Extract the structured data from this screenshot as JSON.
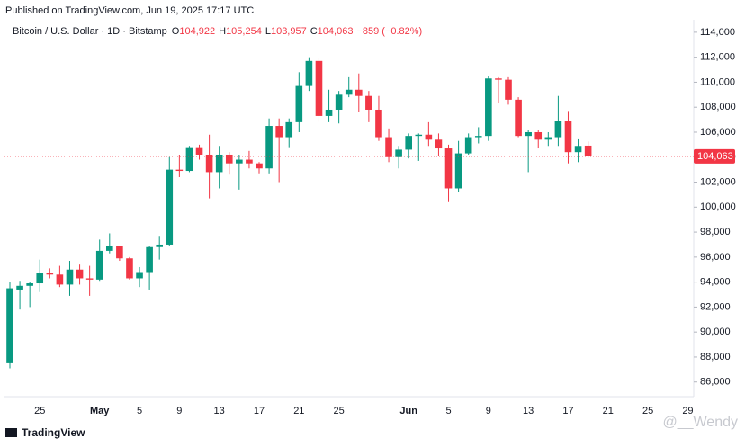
{
  "published": "Published on TradingView.com, Jun 19, 2025 17:17 UTC",
  "legend": {
    "symbol": "Bitcoin / U.S. Dollar · 1D · Bitstamp",
    "fields": [
      {
        "key": "O",
        "value": "104,922"
      },
      {
        "key": "H",
        "value": "105,254"
      },
      {
        "key": "L",
        "value": "103,957"
      },
      {
        "key": "C",
        "value": "104,063"
      }
    ],
    "change": "−859 (−0.82%)"
  },
  "brand": "TradingView",
  "watermark": "@__Wendy",
  "chart_data": {
    "type": "candlestick",
    "categories": [
      null,
      null,
      null,
      "25",
      null,
      null,
      null,
      null,
      null,
      "May",
      null,
      null,
      null,
      "5",
      null,
      null,
      null,
      "9",
      null,
      null,
      null,
      "13",
      null,
      null,
      null,
      "17",
      null,
      null,
      null,
      "21",
      null,
      null,
      null,
      "25",
      null,
      null,
      null,
      null,
      null,
      null,
      "Jun",
      null,
      null,
      null,
      "5",
      null,
      null,
      null,
      "9",
      null,
      null,
      null,
      "13",
      null,
      null,
      null,
      "17",
      null,
      null,
      null,
      "21",
      null,
      null,
      null,
      "25",
      null,
      null,
      null,
      "29"
    ],
    "open": [
      87500,
      93400,
      93700,
      93900,
      94700,
      94600,
      93800,
      95000,
      94300,
      94200,
      96500,
      96900,
      95900,
      94300,
      94800,
      96800,
      97000,
      103000,
      102900,
      104800,
      104200,
      102800,
      104200,
      103500,
      103800,
      103500,
      103100,
      106500,
      105600,
      106800,
      109700,
      111700,
      107300,
      107800,
      109000,
      109400,
      108900,
      107800,
      105600,
      104000,
      104600,
      105700,
      105800,
      105400,
      104700,
      101500,
      104300,
      105600,
      105700,
      110300,
      110200,
      108600,
      105700,
      106000,
      105400,
      105600,
      106900,
      104400,
      104922,
      null,
      null,
      null,
      null,
      null,
      null,
      null,
      null,
      null,
      null
    ],
    "high": [
      94000,
      94100,
      94000,
      95800,
      95100,
      95300,
      95700,
      95400,
      95300,
      97400,
      97900,
      96900,
      96000,
      95200,
      96900,
      97700,
      104000,
      104200,
      104900,
      105000,
      105800,
      104900,
      104400,
      104200,
      104500,
      103600,
      107100,
      107100,
      107100,
      110800,
      112000,
      111900,
      109400,
      109300,
      110400,
      110700,
      109300,
      108900,
      106300,
      104900,
      105900,
      105900,
      106800,
      105900,
      105000,
      105300,
      105900,
      106400,
      110500,
      110400,
      110400,
      108800,
      106200,
      106200,
      106000,
      108900,
      107700,
      105500,
      105254,
      null,
      null,
      null,
      null,
      null,
      null,
      null,
      null,
      null,
      null
    ],
    "low": [
      87100,
      91800,
      92000,
      93200,
      94300,
      93600,
      92900,
      93800,
      92900,
      94100,
      96300,
      95700,
      94200,
      93600,
      93400,
      95800,
      96900,
      102400,
      102800,
      103800,
      100700,
      101500,
      102600,
      101400,
      103100,
      102700,
      102700,
      102000,
      104800,
      106000,
      109300,
      106800,
      106800,
      106700,
      108800,
      107600,
      106800,
      105300,
      103600,
      103100,
      103900,
      103700,
      104900,
      104100,
      100400,
      101200,
      104200,
      105100,
      105300,
      108300,
      108200,
      105600,
      102800,
      104700,
      104900,
      104900,
      103500,
      103600,
      103957,
      null,
      null,
      null,
      null,
      null,
      null,
      null,
      null,
      null,
      null
    ],
    "close": [
      93500,
      93700,
      93900,
      94700,
      94600,
      93800,
      95000,
      94300,
      94200,
      96500,
      96900,
      95900,
      94300,
      94800,
      96800,
      97000,
      103000,
      102900,
      104800,
      104200,
      102800,
      104200,
      103500,
      103800,
      103500,
      103100,
      106500,
      105600,
      106800,
      109700,
      111700,
      107300,
      107800,
      109000,
      109400,
      108900,
      107800,
      105600,
      104000,
      104600,
      105700,
      105800,
      105400,
      104700,
      101500,
      104300,
      105600,
      105700,
      110300,
      110200,
      108600,
      105700,
      106000,
      105400,
      105600,
      106900,
      104400,
      104900,
      104063,
      null,
      null,
      null,
      null,
      null,
      null,
      null,
      null,
      null,
      null
    ],
    "up_color": "#089981",
    "down_color": "#f23645",
    "ylim": [
      84900,
      115000
    ],
    "yticks": [
      {
        "value": 86000,
        "label": "86,000"
      },
      {
        "value": 88000,
        "label": "88,000"
      },
      {
        "value": 90000,
        "label": "90,000"
      },
      {
        "value": 92000,
        "label": "92,000"
      },
      {
        "value": 94000,
        "label": "94,000"
      },
      {
        "value": 96000,
        "label": "96,000"
      },
      {
        "value": 98000,
        "label": "98,000"
      },
      {
        "value": 100000,
        "label": "100,000"
      },
      {
        "value": 102000,
        "label": "102,000"
      },
      {
        "value": 104000,
        "label": "104,000"
      },
      {
        "value": 106000,
        "label": "106,000"
      },
      {
        "value": 108000,
        "label": "108,000"
      },
      {
        "value": 110000,
        "label": "110,000"
      },
      {
        "value": 112000,
        "label": "112,000"
      },
      {
        "value": 114000,
        "label": "114,000"
      }
    ],
    "last_price": {
      "value": 104063,
      "label": "104,063"
    }
  }
}
